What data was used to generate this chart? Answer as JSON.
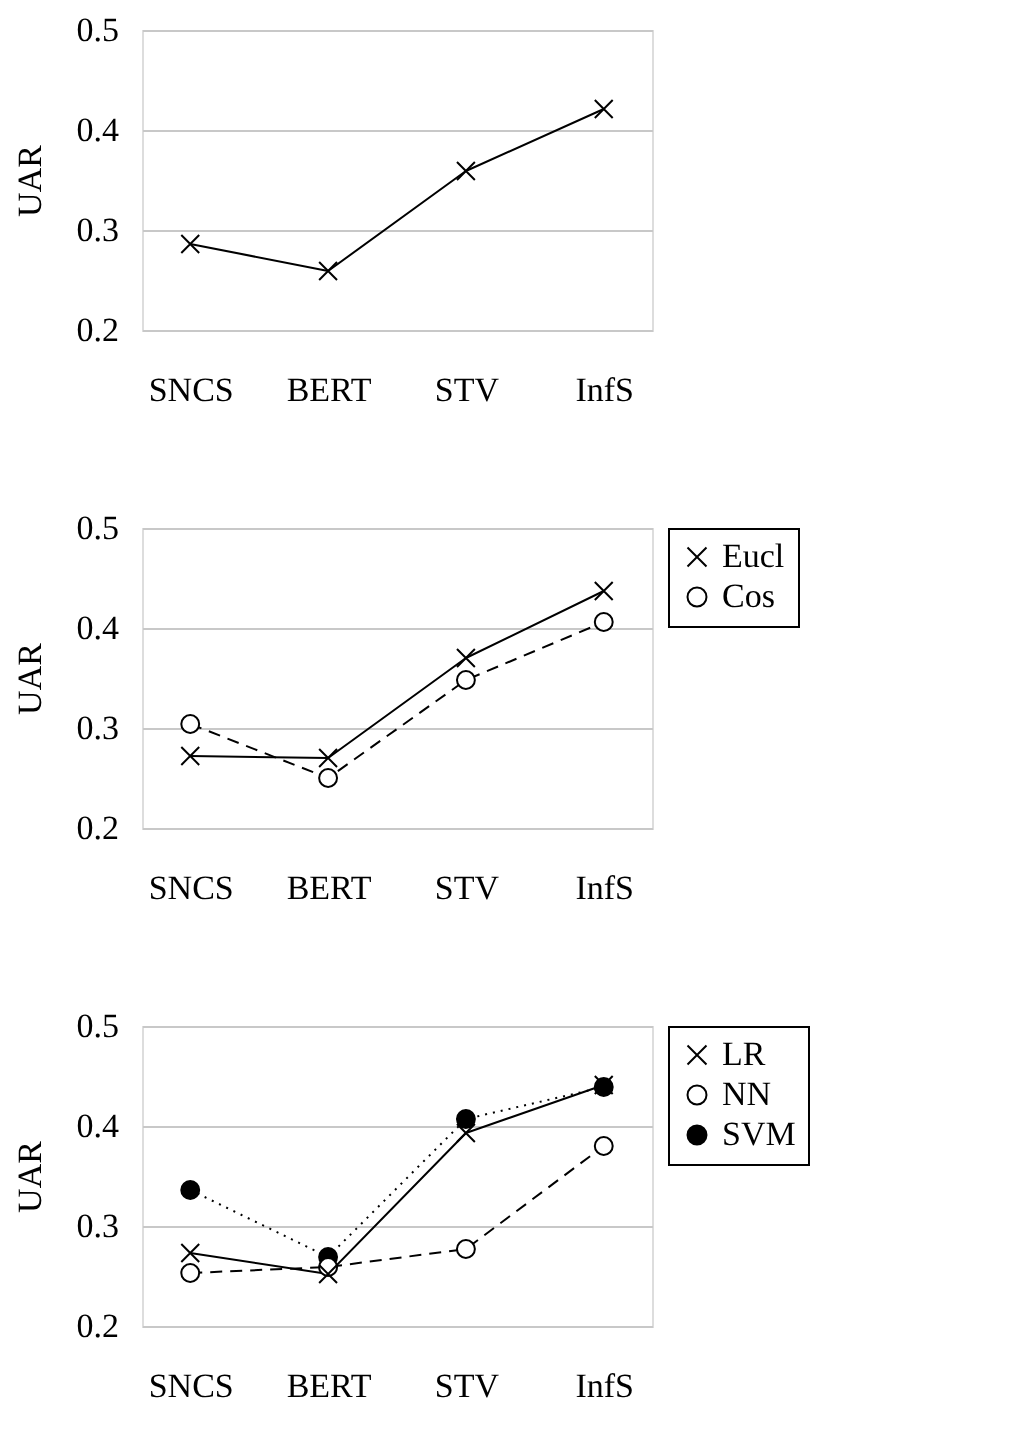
{
  "chart_data": [
    {
      "type": "line",
      "ylabel": "UAR",
      "categories": [
        "SNCS",
        "BERT",
        "STV",
        "InfS"
      ],
      "ylim": [
        0.2,
        0.5
      ],
      "yticks": [
        0.2,
        0.3,
        0.4,
        0.5
      ],
      "grid": "y",
      "legend": false,
      "series": [
        {
          "color": "#000000",
          "marker": "cross",
          "line_style": "solid",
          "values": [
            0.286,
            0.259,
            0.359,
            0.421
          ]
        }
      ]
    },
    {
      "type": "line",
      "ylabel": "UAR",
      "categories": [
        "SNCS",
        "BERT",
        "STV",
        "InfS"
      ],
      "ylim": [
        0.2,
        0.5
      ],
      "yticks": [
        0.2,
        0.3,
        0.4,
        0.5
      ],
      "grid": "y",
      "legend": "top right",
      "series": [
        {
          "name": "Eucl",
          "color": "#000000",
          "marker": "cross",
          "line_style": "solid",
          "values": [
            0.272,
            0.27,
            0.37,
            0.437
          ]
        },
        {
          "name": "Cos",
          "color": "#000000",
          "marker": "circle",
          "line_style": "dashed",
          "values": [
            0.304,
            0.25,
            0.348,
            0.406
          ]
        }
      ]
    },
    {
      "type": "line",
      "ylabel": "UAR",
      "categories": [
        "SNCS",
        "BERT",
        "STV",
        "InfS"
      ],
      "ylim": [
        0.2,
        0.5
      ],
      "yticks": [
        0.2,
        0.3,
        0.4,
        0.5
      ],
      "grid": "y",
      "legend": "top right",
      "series": [
        {
          "name": "LR",
          "color": "#000000",
          "marker": "cross",
          "line_style": "solid",
          "values": [
            0.273,
            0.252,
            0.393,
            0.441
          ]
        },
        {
          "name": "NN",
          "color": "#000000",
          "marker": "circle",
          "line_style": "dashed",
          "values": [
            0.253,
            0.259,
            0.277,
            0.38
          ]
        },
        {
          "name": "SVM",
          "color": "#000000",
          "marker": "circle",
          "line_style": "dotted",
          "values": [
            0.336,
            0.269,
            0.407,
            0.439
          ]
        }
      ]
    }
  ]
}
